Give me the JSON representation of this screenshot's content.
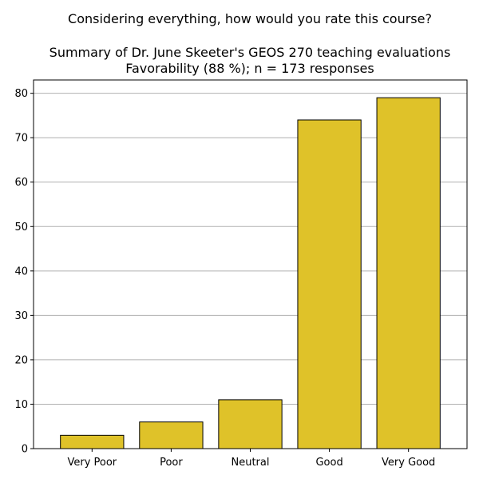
{
  "chart_data": {
    "type": "bar",
    "title_lines": [
      "Considering everything, how would you rate this course?",
      "",
      "Summary of Dr. June Skeeter's GEOS 270 teaching evaluations",
      "Favorability (88 %); n = 173 responses"
    ],
    "categories": [
      "Very Poor",
      "Poor",
      "Neutral",
      "Good",
      "Very Good"
    ],
    "values": [
      3,
      6,
      11,
      74,
      79
    ],
    "xlabel": "",
    "ylabel": "",
    "ylim": [
      0,
      83
    ],
    "yticks": [
      0,
      10,
      20,
      30,
      40,
      50,
      60,
      70,
      80
    ],
    "grid": "y",
    "legend": "none",
    "bar_color": "#dfc229",
    "bar_edge_color": "#000000",
    "grid_color": "#b0b0b0"
  }
}
